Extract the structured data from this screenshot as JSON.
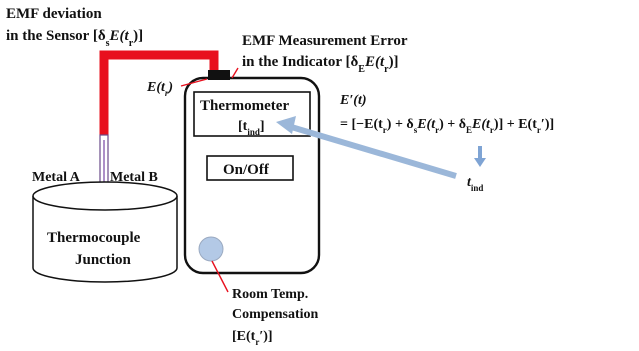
{
  "labels": {
    "emf_dev_line1": "EMF deviation",
    "emf_dev_line2": "in the Sensor [δ",
    "emf_dev_sub": "s",
    "emf_dev_tail": "E(t",
    "emf_dev_sub2": "r",
    "emf_dev_close": ")]",
    "meas_err_line1": "EMF Measurement Error",
    "meas_err_line2": "in the Indicator [δ",
    "meas_err_sub": "E",
    "meas_err_tail": "E(t",
    "meas_err_sub2": "r",
    "meas_err_close": ")]",
    "e_tr": "E(t",
    "e_tr_sub": "r",
    "e_tr_close": ")",
    "e_prime": "E′(t)",
    "equation": "= [−E(t",
    "eq_r1": "r",
    "eq_p2": ") + δ",
    "eq_s": "s",
    "eq_p3": "E(t",
    "eq_r2": "r",
    "eq_p4": ") + δ",
    "eq_e": "E",
    "eq_p5": "E(t",
    "eq_r3": "r",
    "eq_p6": ")] + E(t",
    "eq_r4": "r",
    "eq_tail": "′)]",
    "thermometer": "Thermometer",
    "t_ind_box": "[t",
    "t_ind_box_sub": "ind",
    "t_ind_box_close": "]",
    "on_off": "On/Off",
    "t_ind_out": "t",
    "t_ind_out_sub": "ind",
    "metal_a": "Metal A",
    "metal_b": "Metal B",
    "thermocouple_1": "Thermocouple",
    "thermocouple_2": "Junction",
    "room_temp_1": "Room Temp.",
    "room_temp_2": "Compensation",
    "room_temp_3": "[E(t",
    "room_temp_sub": "r",
    "room_temp_close": "′)]"
  },
  "colors": {
    "wire": "#e8101e",
    "arrow": "#9bb7d9",
    "knob": "#b3c9e6",
    "probe": "#8a5fb0"
  }
}
